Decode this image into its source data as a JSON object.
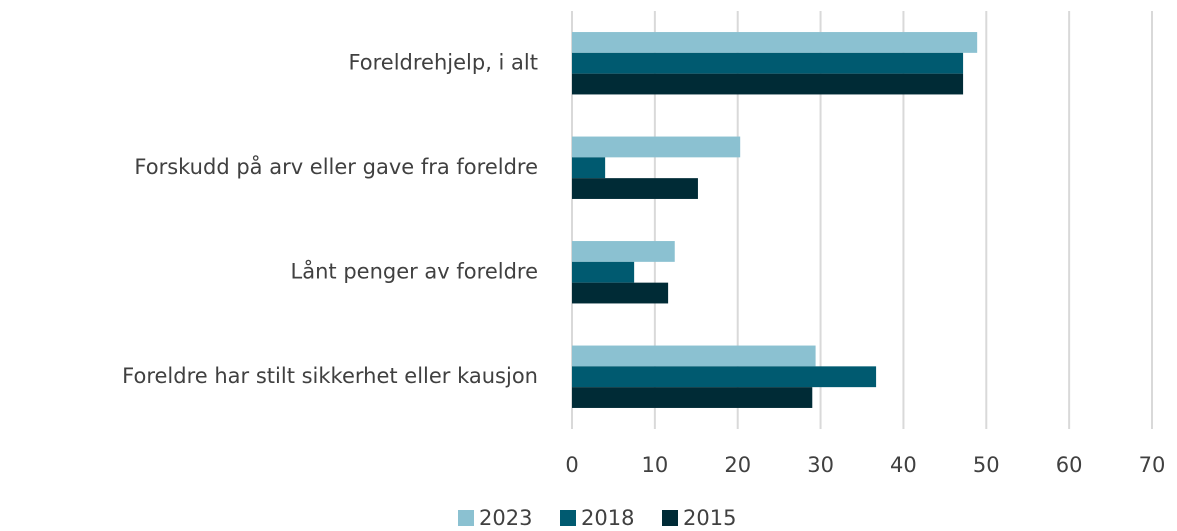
{
  "chart_data": {
    "type": "barh",
    "categories": [
      "Foreldrehjelp, i alt",
      "Forskudd på arv eller gave fra foreldre",
      "Lånt penger av foreldre",
      "Foreldre har stilt sikkerhet eller kausjon"
    ],
    "series": [
      {
        "name": "2023",
        "color": "#8bc1d1",
        "values": [
          48.9,
          20.3,
          12.4,
          29.4
        ]
      },
      {
        "name": "2018",
        "color": "#005a70",
        "values": [
          47.2,
          4.0,
          7.5,
          36.7
        ]
      },
      {
        "name": "2015",
        "color": "#002b36",
        "values": [
          47.2,
          15.2,
          11.6,
          29.0
        ]
      }
    ],
    "xlim": [
      0,
      70
    ],
    "xticks": [
      0,
      10,
      20,
      30,
      40,
      50,
      60,
      70
    ],
    "grid": true,
    "legend": "bottom"
  }
}
